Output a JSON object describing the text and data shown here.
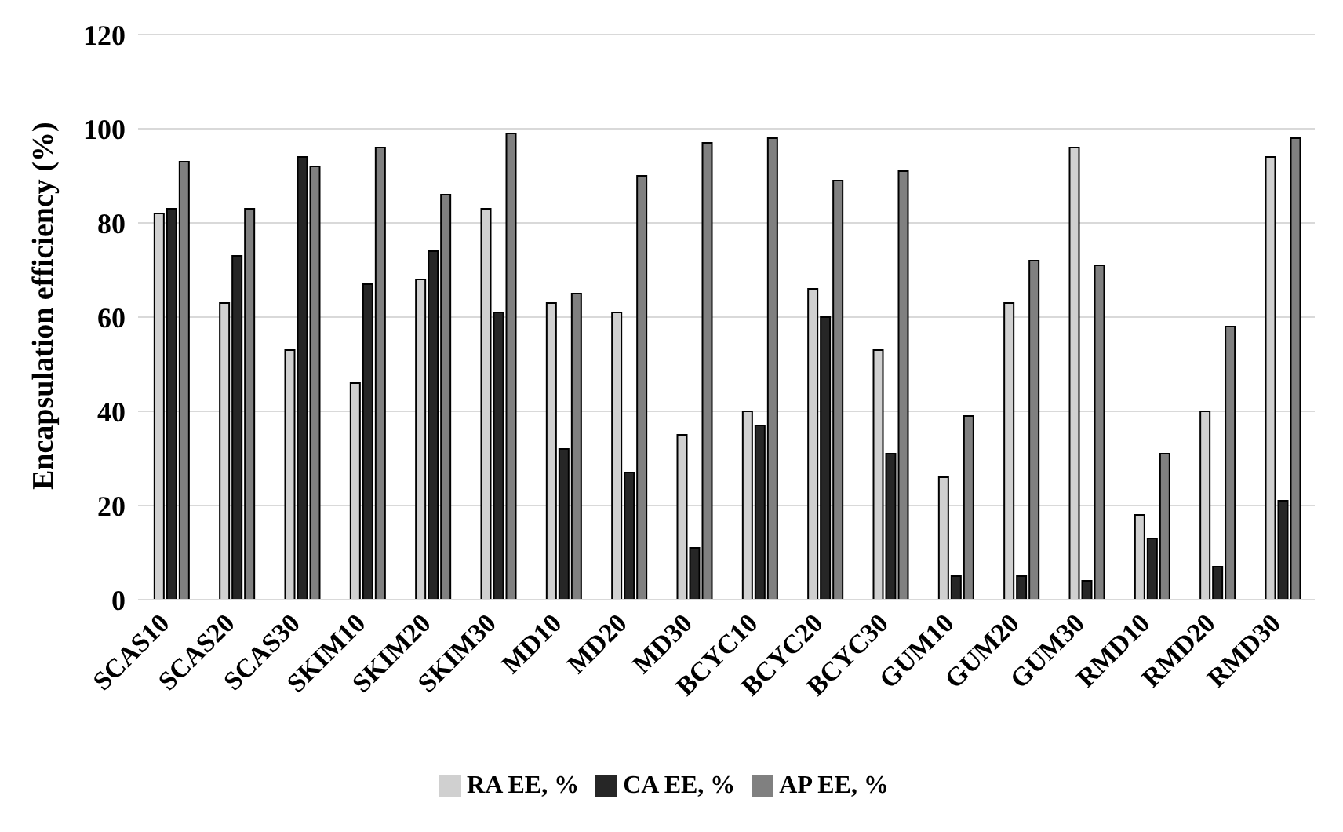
{
  "chart_data": {
    "type": "bar",
    "ylabel": "Encapsulation  efficiency (%)",
    "categories": [
      "SCAS10",
      "SCAS20",
      "SCAS30",
      "SKIM10",
      "SKIM20",
      "SKIM30",
      "MD10",
      "MD20",
      "MD30",
      "BCYC10",
      "BCYC20",
      "BCYC30",
      "GUM10",
      "GUM20",
      "GUM30",
      "RMD10",
      "RMD20",
      "RMD30"
    ],
    "series": [
      {
        "name": "RA EE, %",
        "color": "#d0d0d0",
        "values": [
          82,
          63,
          53,
          46,
          68,
          83,
          63,
          61,
          35,
          40,
          66,
          53,
          26,
          63,
          96,
          18,
          40,
          94
        ]
      },
      {
        "name": "CA EE, %",
        "color": "#262626",
        "values": [
          83,
          73,
          94,
          67,
          74,
          61,
          32,
          27,
          11,
          37,
          60,
          31,
          5,
          5,
          4,
          13,
          7,
          21
        ]
      },
      {
        "name": "AP EE, %",
        "color": "#808080",
        "values": [
          93,
          83,
          92,
          96,
          86,
          99,
          65,
          90,
          97,
          98,
          89,
          91,
          39,
          72,
          71,
          31,
          58,
          98
        ]
      }
    ],
    "ylim": [
      0,
      120
    ],
    "yticks": [
      0,
      20,
      40,
      60,
      80,
      100,
      120
    ],
    "grid": "y",
    "legend": "bottom"
  }
}
